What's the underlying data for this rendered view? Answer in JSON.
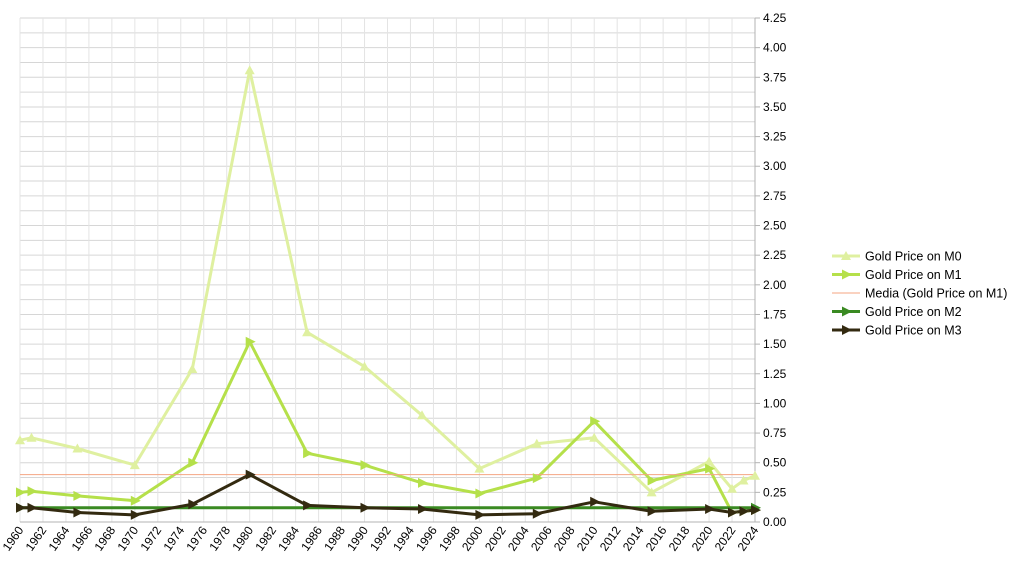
{
  "chart_data": {
    "type": "line",
    "title": "",
    "xlabel": "",
    "ylabel": "",
    "x_tick_labels": [
      "1960",
      "1962",
      "1964",
      "1966",
      "1968",
      "1970",
      "1972",
      "1974",
      "1976",
      "1978",
      "1980",
      "1982",
      "1984",
      "1986",
      "1988",
      "1990",
      "1992",
      "1994",
      "1996",
      "1998",
      "2000",
      "2002",
      "2004",
      "2006",
      "2008",
      "2010",
      "2012",
      "2014",
      "2016",
      "2018",
      "2020",
      "2022",
      "2024"
    ],
    "xlim": [
      1960,
      2024
    ],
    "ylim": [
      0,
      4.25
    ],
    "y_ticks": [
      "0.00",
      "0.25",
      "0.50",
      "0.75",
      "1.00",
      "1.25",
      "1.50",
      "1.75",
      "2.00",
      "2.25",
      "2.50",
      "2.75",
      "3.00",
      "3.25",
      "3.50",
      "3.75",
      "4.00",
      "4.25"
    ],
    "y_axis_position": "right",
    "grid": true,
    "legend_position": "right",
    "series": [
      {
        "name": "Gold Price on M0",
        "color": "#dff0a0",
        "marker": "triangle-up",
        "points": [
          [
            1960,
            0.69
          ],
          [
            1961,
            0.71
          ],
          [
            1965,
            0.62
          ],
          [
            1970,
            0.48
          ],
          [
            1975,
            1.29
          ],
          [
            1980,
            3.81
          ],
          [
            1985,
            1.6
          ],
          [
            1990,
            1.31
          ],
          [
            1995,
            0.9
          ],
          [
            2000,
            0.45
          ],
          [
            2005,
            0.66
          ],
          [
            2010,
            0.71
          ],
          [
            2015,
            0.25
          ],
          [
            2020,
            0.51
          ],
          [
            2022,
            0.28
          ],
          [
            2023,
            0.35
          ],
          [
            2024,
            0.39
          ]
        ]
      },
      {
        "name": "Gold Price on M1",
        "color": "#b5e04a",
        "marker": "triangle-right",
        "points": [
          [
            1960,
            0.25
          ],
          [
            1961,
            0.26
          ],
          [
            1965,
            0.22
          ],
          [
            1970,
            0.18
          ],
          [
            1975,
            0.5
          ],
          [
            1980,
            1.52
          ],
          [
            1985,
            0.58
          ],
          [
            1990,
            0.48
          ],
          [
            1995,
            0.33
          ],
          [
            2000,
            0.24
          ],
          [
            2005,
            0.37
          ],
          [
            2010,
            0.85
          ],
          [
            2015,
            0.35
          ],
          [
            2020,
            0.45
          ],
          [
            2022,
            0.08
          ],
          [
            2023,
            0.09
          ],
          [
            2024,
            0.1
          ]
        ]
      },
      {
        "name": "Media (Gold Price on M1)",
        "color": "#f4a582",
        "marker": "none",
        "points": [
          [
            1960,
            0.4
          ],
          [
            2024,
            0.4
          ]
        ]
      },
      {
        "name": "Gold Price on M2",
        "color": "#3a8a22",
        "marker": "triangle-right",
        "points": [
          [
            1960,
            0.12
          ],
          [
            2024,
            0.12
          ]
        ]
      },
      {
        "name": "Gold Price on M3",
        "color": "#332a10",
        "marker": "triangle-right",
        "points": [
          [
            1960,
            0.12
          ],
          [
            1961,
            0.12
          ],
          [
            1965,
            0.08
          ],
          [
            1970,
            0.06
          ],
          [
            1975,
            0.15
          ],
          [
            1980,
            0.4
          ],
          [
            1985,
            0.14
          ],
          [
            1990,
            0.12
          ],
          [
            1995,
            0.11
          ],
          [
            2000,
            0.06
          ],
          [
            2005,
            0.07
          ],
          [
            2010,
            0.17
          ],
          [
            2015,
            0.09
          ],
          [
            2020,
            0.11
          ],
          [
            2022,
            0.08
          ],
          [
            2023,
            0.09
          ],
          [
            2024,
            0.1
          ]
        ]
      }
    ]
  }
}
